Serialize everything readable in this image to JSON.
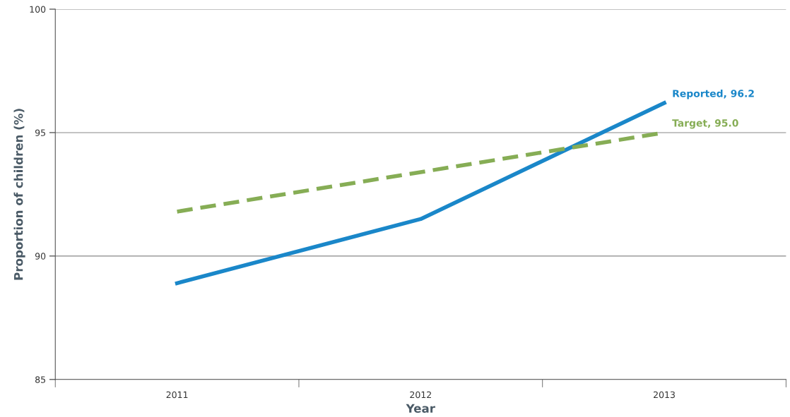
{
  "chart_data": {
    "type": "line",
    "xlabel": "Year",
    "ylabel": "Proportion of children (%)",
    "categories": [
      "2011",
      "2012",
      "2013"
    ],
    "series": [
      {
        "color": "#1a87c9",
        "values": [
          88.9,
          91.5,
          96.2
        ],
        "value_labels": [
          null,
          null,
          "Reported, 96.2"
        ],
        "line_style": "solid"
      },
      {
        "color": "#86ad55",
        "values": [
          91.8,
          93.4,
          95.0
        ],
        "value_labels": [
          null,
          null,
          "Target, 95.0"
        ],
        "line_style": "dashed"
      }
    ],
    "ylim": [
      85,
      100
    ],
    "yticks": [
      85,
      90,
      95,
      100
    ],
    "grid": "y",
    "legend": false,
    "marker": "none"
  }
}
